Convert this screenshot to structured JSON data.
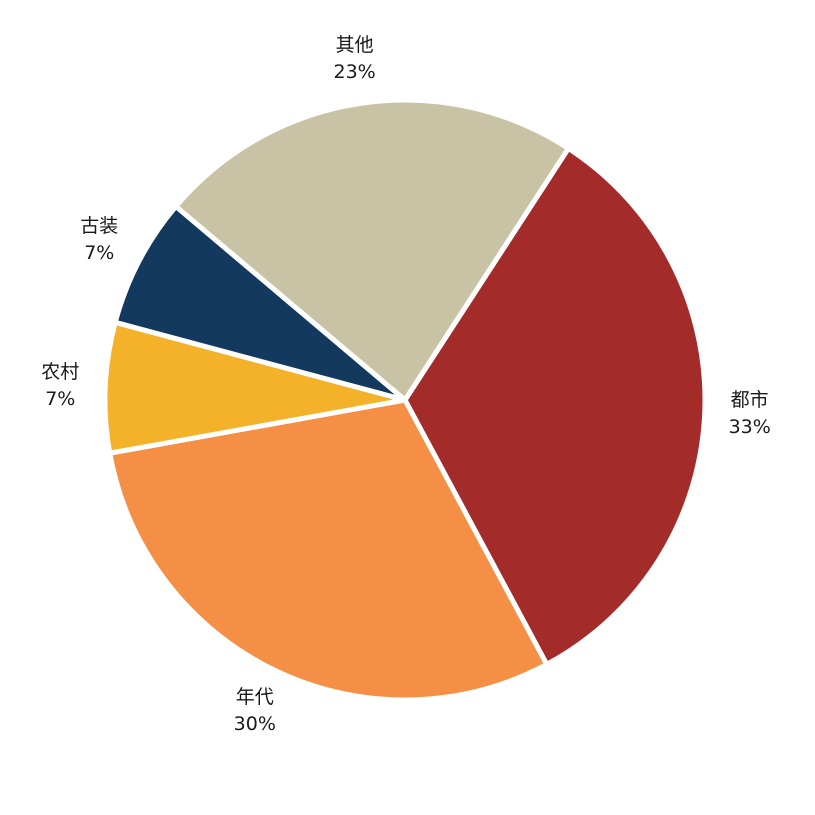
{
  "chart_data": {
    "type": "pie",
    "title": "",
    "categories": [
      "都市",
      "年代",
      "农村",
      "古装",
      "其他"
    ],
    "values": [
      33,
      30,
      7,
      7,
      23
    ],
    "percent_labels": [
      "33%",
      "30%",
      "7%",
      "7%",
      "23%"
    ],
    "colors": [
      "#A32B2A",
      "#F68F46",
      "#F3B229",
      "#14395E",
      "#C9C3A6"
    ],
    "start_angle_deg_clockwise_from_top": 33,
    "direction": "clockwise",
    "slice_gap_color": "#FFFFFF",
    "label_color": "#1A1A1A",
    "background": "#FFFFFF",
    "legend": "none"
  }
}
